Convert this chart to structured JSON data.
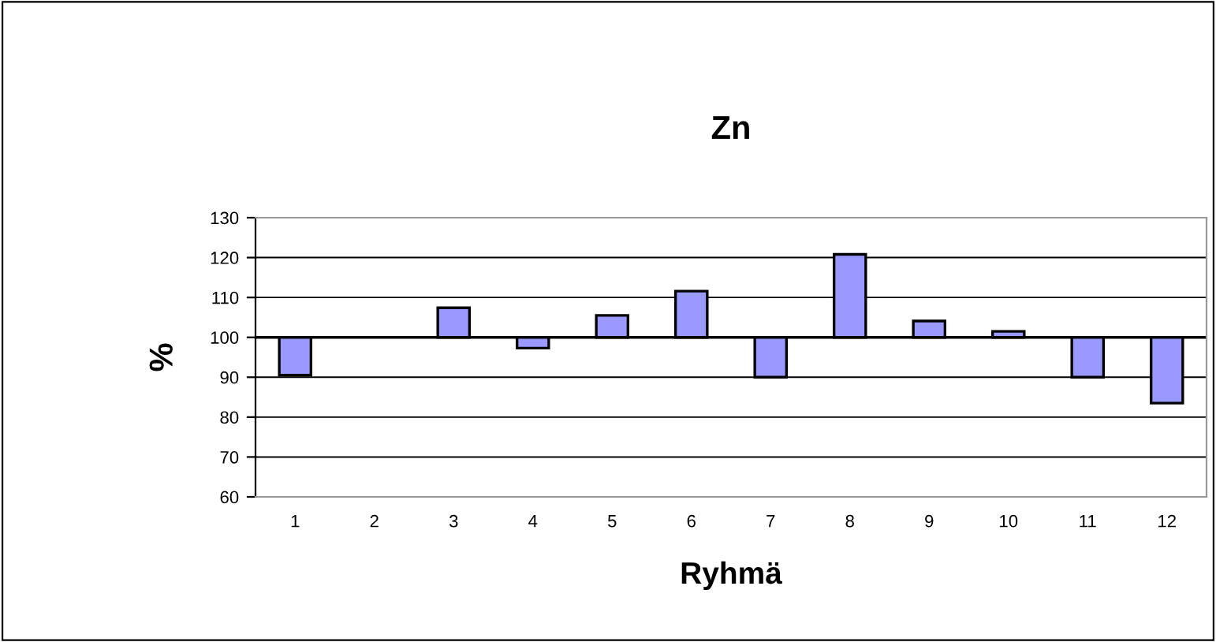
{
  "chart_data": {
    "type": "bar",
    "title": "Zn",
    "xlabel": "Ryhmä",
    "ylabel": "%",
    "categories": [
      "1",
      "2",
      "3",
      "4",
      "5",
      "6",
      "7",
      "8",
      "9",
      "10",
      "11",
      "12"
    ],
    "base": [
      100,
      null,
      100,
      100,
      100,
      100,
      100,
      100,
      100,
      100,
      100,
      100
    ],
    "values": [
      -9.5,
      null,
      7.4,
      -2.7,
      5.5,
      11.6,
      -10,
      20.8,
      4.1,
      1.5,
      -10,
      -16.5
    ],
    "color": "#9999ff",
    "ylim": [
      60,
      130
    ],
    "yticks": [
      60,
      70,
      80,
      90,
      100,
      110,
      120,
      130
    ],
    "grid": "y",
    "ref_lines": [
      {
        "axis": "y",
        "value": 100,
        "color": "#000000"
      }
    ]
  }
}
